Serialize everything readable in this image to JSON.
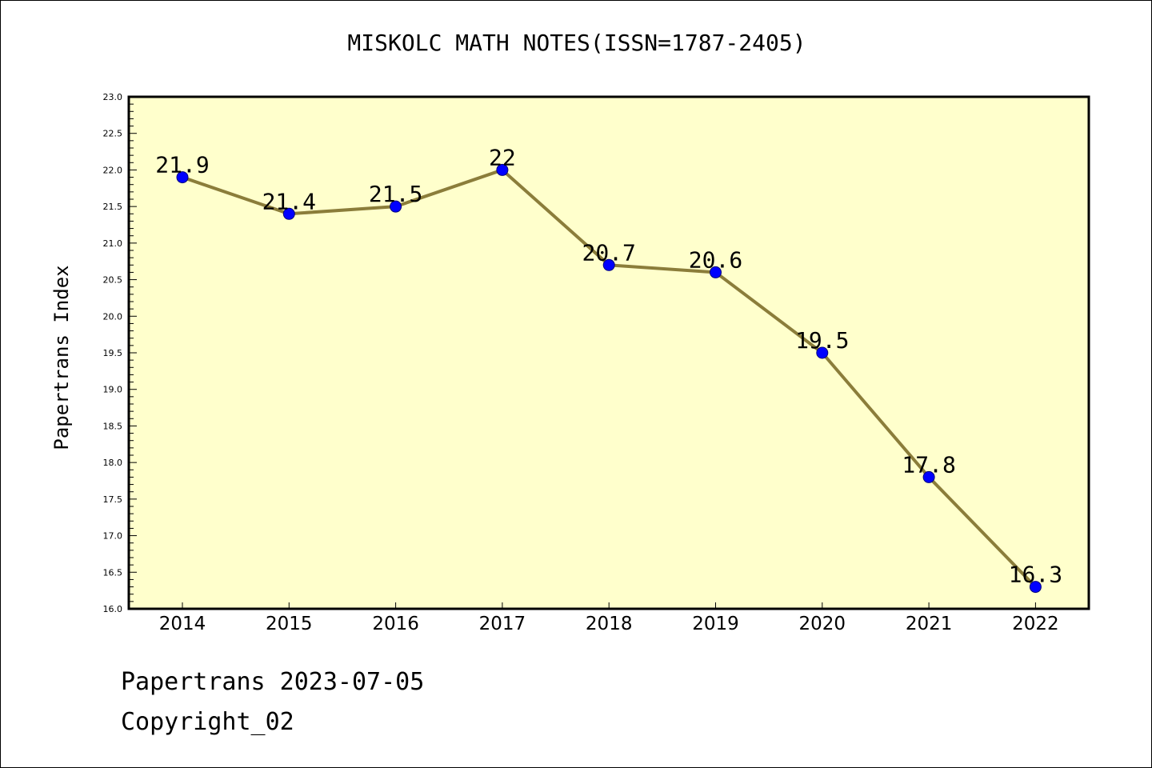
{
  "chart_data": {
    "type": "line",
    "title": "MISKOLC MATH NOTES(ISSN=1787-2405)",
    "xlabel": "",
    "ylabel": "Papertrans Index",
    "categories": [
      "2014",
      "2015",
      "2016",
      "2017",
      "2018",
      "2019",
      "2020",
      "2021",
      "2022"
    ],
    "series": [
      {
        "values": [
          21.9,
          21.4,
          21.5,
          22.0,
          20.7,
          20.6,
          19.5,
          17.8,
          16.3
        ],
        "value_labels": [
          "21.9",
          "21.4",
          "21.5",
          "22",
          "20.7",
          "20.6",
          "19.5",
          "17.8",
          "16.3"
        ]
      }
    ],
    "ylim": [
      16.0,
      23.0
    ],
    "yticks": [
      "16.0",
      "16.5",
      "17.0",
      "17.5",
      "18.0",
      "18.5",
      "19.0",
      "19.5",
      "20.0",
      "20.5",
      "21.0",
      "21.5",
      "22.0",
      "22.5",
      "23.0"
    ],
    "grid": false,
    "colors": {
      "plot_background": "#ffffcc",
      "line": "#8b7d3a",
      "marker": "#0000ff",
      "axes": "#000000"
    }
  },
  "footer": {
    "line1": "Papertrans 2023-07-05",
    "line2": "Copyright_02"
  }
}
